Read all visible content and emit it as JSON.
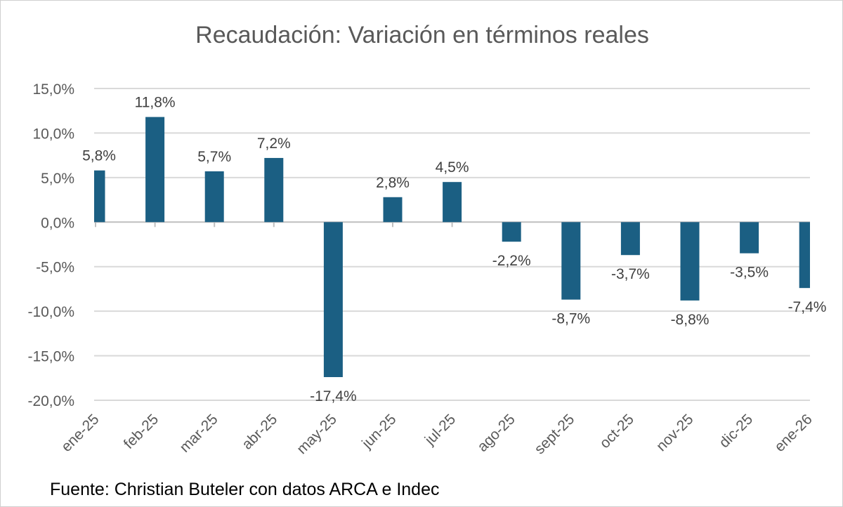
{
  "chart_data": {
    "type": "bar",
    "title": "Recaudación: Variación en términos reales",
    "source": "Fuente: Christian Buteler con datos ARCA e Indec",
    "categories": [
      "ene-25",
      "feb-25",
      "mar-25",
      "abr-25",
      "may-25",
      "jun-25",
      "jul-25",
      "ago-25",
      "sept-25",
      "oct-25",
      "nov-25",
      "dic-25",
      "ene-26"
    ],
    "values": [
      5.8,
      11.8,
      5.7,
      7.2,
      -17.4,
      2.8,
      4.5,
      -2.2,
      -8.7,
      -3.7,
      -8.8,
      -3.5,
      -7.4
    ],
    "data_labels": [
      "5,8%",
      "11,8%",
      "5,7%",
      "7,2%",
      "-17,4%",
      "2,8%",
      "4,5%",
      "-2,2%",
      "-8,7%",
      "-3,7%",
      "-8,8%",
      "-3,5%",
      "-7,4%"
    ],
    "ylim": [
      -20,
      15
    ],
    "yticks": [
      15,
      10,
      5,
      0,
      -5,
      -10,
      -15,
      -20
    ],
    "ytick_labels": [
      "15,0%",
      "10,0%",
      "5,0%",
      "0,0%",
      "-5,0%",
      "-10,0%",
      "-15,0%",
      "-20,0%"
    ],
    "xlabel": "",
    "ylabel": "",
    "grid": true,
    "legend": "none",
    "bar_color": "#1b5f83"
  }
}
